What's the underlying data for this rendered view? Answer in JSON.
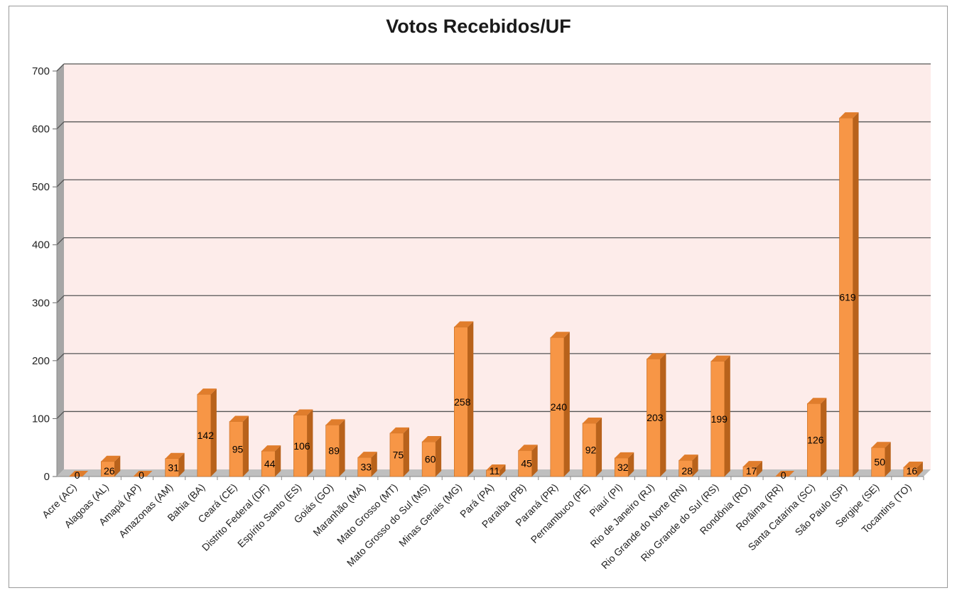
{
  "chart_data": {
    "type": "bar",
    "title": "Votos Recebidos/UF",
    "xlabel": "",
    "ylabel": "",
    "ylim": [
      0,
      700
    ],
    "yticks": [
      0,
      100,
      200,
      300,
      400,
      500,
      600,
      700
    ],
    "grid": true,
    "style": "3d-column",
    "colors": {
      "bar_front": "#f79646",
      "bar_side": "#b8621b",
      "bar_top": "#e07d2c",
      "plot_wall": "#fdecea",
      "side_wall": "#a6a6a6",
      "floor": "#bfbfbf"
    },
    "categories": [
      "Acre (AC)",
      "Alagoas (AL)",
      "Amapá (AP)",
      "Amazonas (AM)",
      "Bahia (BA)",
      "Ceará (CE)",
      "Distrito Federal (DF)",
      "Espírito Santo (ES)",
      "Goiás (GO)",
      "Maranhão (MA)",
      "Mato Grosso (MT)",
      "Mato Grosso do Sul (MS)",
      "Minas Gerais (MG)",
      "Pará (PA)",
      "Paraíba (PB)",
      "Paraná (PR)",
      "Pernambuco (PE)",
      "Piauí (PI)",
      "Rio de Janeiro (RJ)",
      "Rio Grande do Norte (RN)",
      "Rio Grande do Sul (RS)",
      "Rondônia (RO)",
      "Rorâima (RR)",
      "Santa Catarina (SC)",
      "São Paulo (SP)",
      "Sergipe (SE)",
      "Tocantins (TO)"
    ],
    "values": [
      0,
      26,
      0,
      31,
      142,
      95,
      44,
      106,
      89,
      33,
      75,
      60,
      258,
      11,
      45,
      240,
      92,
      32,
      203,
      28,
      199,
      17,
      0,
      126,
      619,
      50,
      16
    ]
  }
}
